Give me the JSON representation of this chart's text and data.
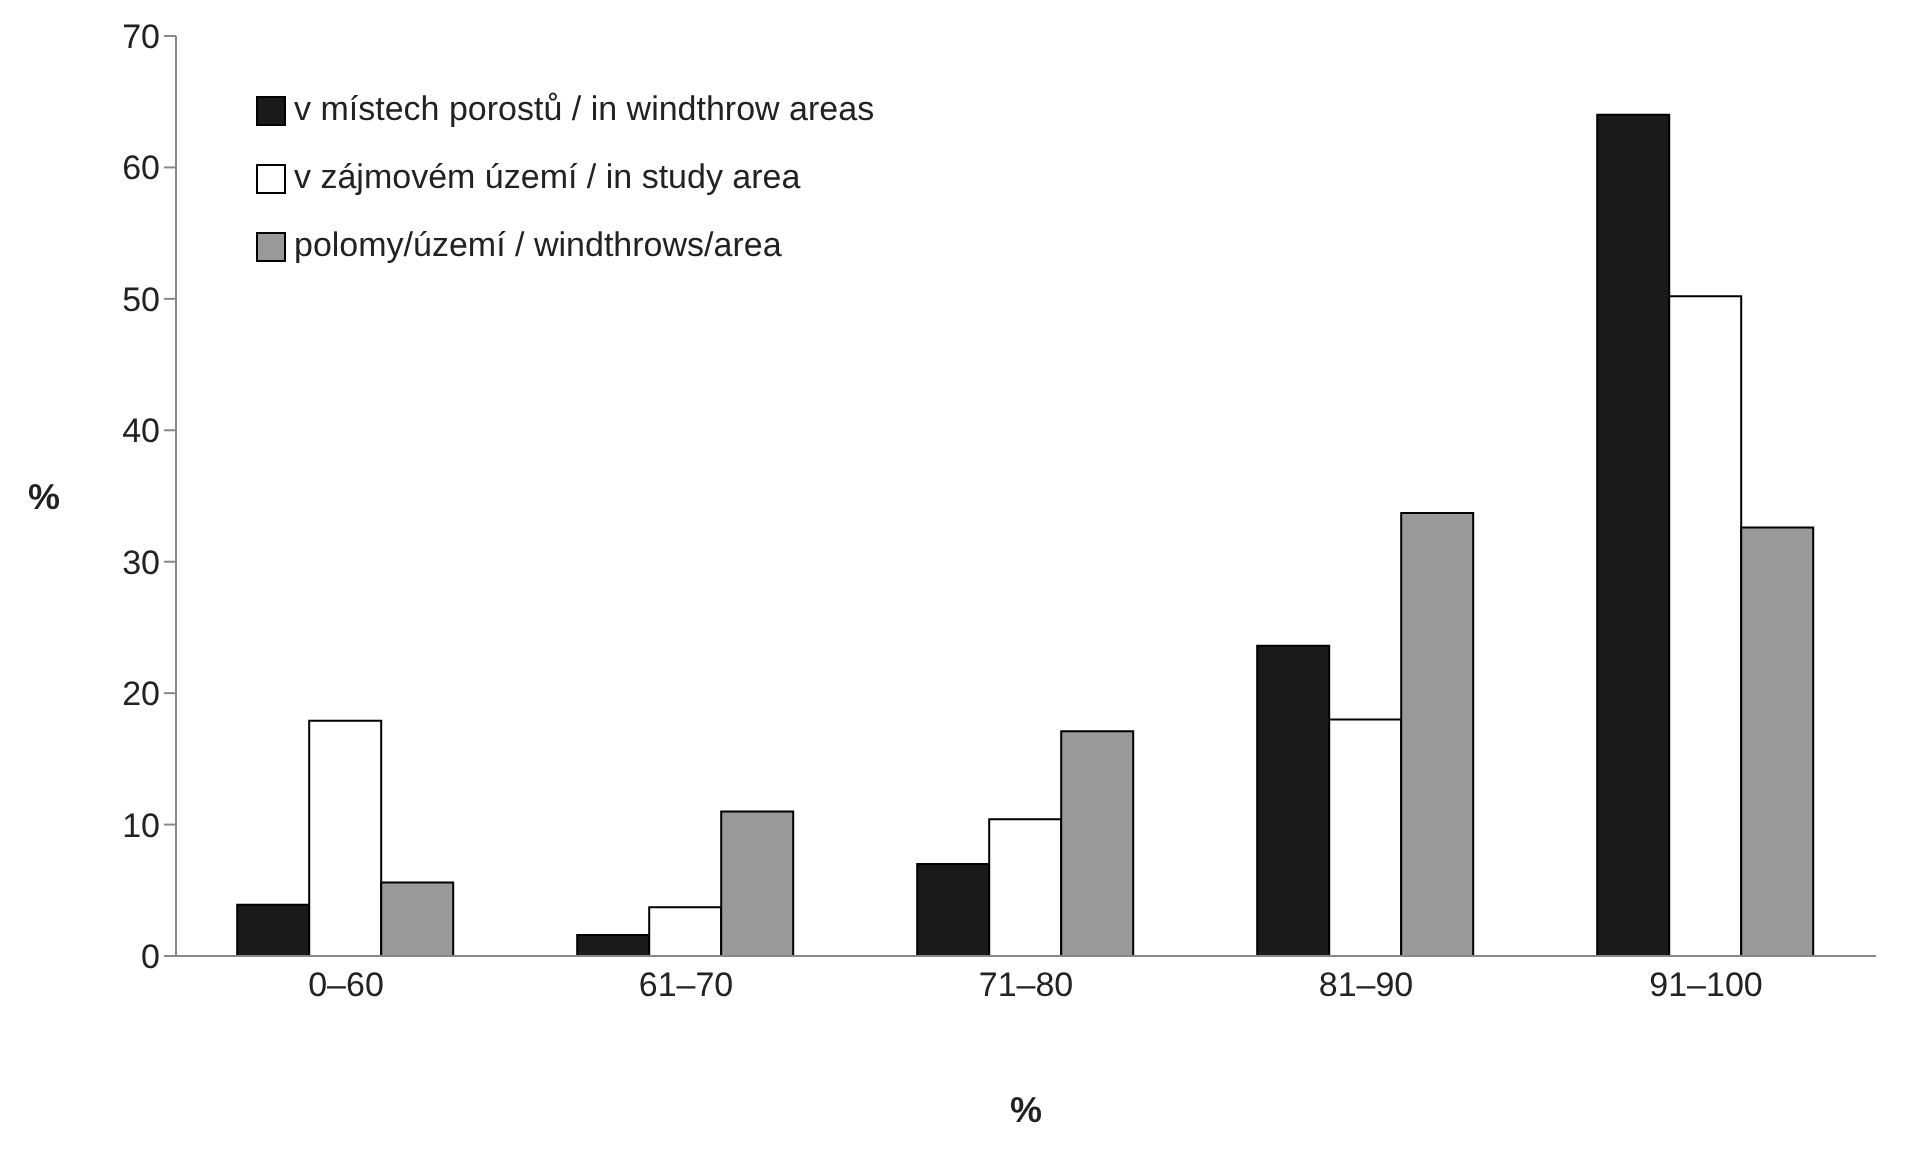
{
  "chart_data": {
    "type": "bar",
    "xlabel": "%",
    "ylabel": "%",
    "categories": [
      "0–60",
      "61–70",
      "71–80",
      "81–90",
      "91–100"
    ],
    "series": [
      {
        "name": "v místech porostů / in windthrow areas",
        "color": "#1a1a1a",
        "values": [
          3.9,
          1.6,
          7.0,
          23.6,
          64.0
        ]
      },
      {
        "name": "v zájmovém území / in study area",
        "color": "#ffffff",
        "values": [
          17.9,
          3.7,
          10.4,
          18.0,
          50.2
        ]
      },
      {
        "name": "polomy/území / windthrows/area",
        "color": "#999999",
        "values": [
          5.6,
          11.0,
          17.1,
          33.7,
          32.6
        ]
      }
    ],
    "ylim": [
      0,
      70
    ],
    "yticks": [
      0,
      10,
      20,
      30,
      40,
      50,
      60,
      70
    ],
    "grid": false,
    "legend": "top left"
  }
}
